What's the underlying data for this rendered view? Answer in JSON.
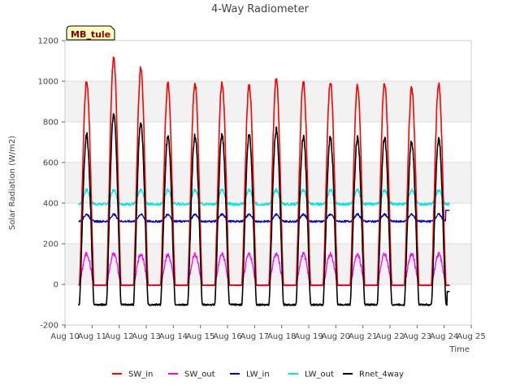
{
  "chart_data": {
    "type": "line",
    "title": "4-Way Radiometer",
    "xlabel": "Time",
    "ylabel": "Solar Radiation (W/m2)",
    "ylim": [
      -200,
      1200
    ],
    "yticks": [
      -200,
      0,
      200,
      400,
      600,
      800,
      1000,
      1200
    ],
    "xlim": [
      10,
      25
    ],
    "xticks": [
      10,
      11,
      12,
      13,
      14,
      15,
      16,
      17,
      18,
      19,
      20,
      21,
      22,
      23,
      24,
      25
    ],
    "xtick_labels": [
      "Aug 10",
      "Aug 11",
      "Aug 12",
      "Aug 13",
      "Aug 14",
      "Aug 15",
      "Aug 16",
      "Aug 17",
      "Aug 18",
      "Aug 19",
      "Aug 20",
      "Aug 21",
      "Aug 22",
      "Aug 23",
      "Aug 24",
      "Aug 25"
    ],
    "site_label": "MB_tule",
    "legend_position": "bottom",
    "grid": true,
    "day_peaks": {
      "days": [
        10.8,
        11.8,
        12.8,
        13.8,
        14.8,
        15.8,
        16.8,
        17.8,
        18.8,
        19.8,
        20.8,
        21.8,
        22.8,
        23.8
      ],
      "sw_in": [
        1000,
        1115,
        1060,
        985,
        990,
        995,
        985,
        1010,
        1000,
        1000,
        980,
        990,
        965,
        985
      ],
      "sw_out": [
        150,
        150,
        150,
        145,
        148,
        148,
        148,
        152,
        150,
        150,
        148,
        150,
        148,
        148
      ],
      "rnet": [
        735,
        845,
        795,
        725,
        735,
        735,
        735,
        760,
        725,
        720,
        720,
        720,
        705,
        715
      ]
    },
    "series": [
      {
        "name": "SW_in",
        "color": "#ff0000",
        "night_value": -5,
        "peak_values_ref": "sw_in"
      },
      {
        "name": "SW_out",
        "color": "#ff00ff",
        "night_value": -3,
        "peak_values_ref": "sw_out"
      },
      {
        "name": "LW_in",
        "color": "#0000cc",
        "baseline": 310,
        "day_amplitude": 35,
        "last_value": 365
      },
      {
        "name": "LW_out",
        "color": "#00e5e5",
        "baseline": 395,
        "day_amplitude": 70
      },
      {
        "name": "Rnet_4way",
        "color": "#000000",
        "night_value": -100,
        "peak_values_ref": "rnet",
        "last_value": -35
      }
    ],
    "data_start": 10.5,
    "data_end": 24.2
  }
}
